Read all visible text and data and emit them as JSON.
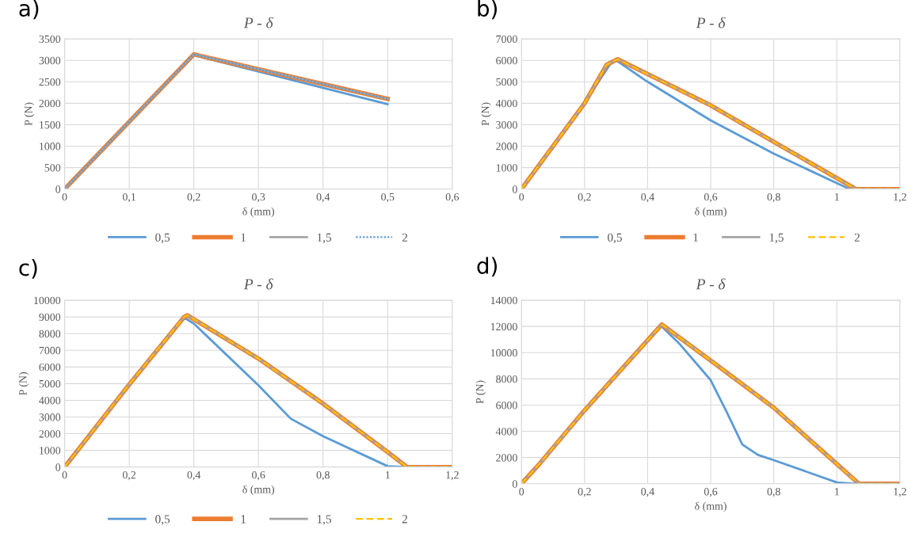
{
  "chart_data": [
    {
      "type": "line",
      "title": "P - δ",
      "xlabel": "δ (mm)",
      "ylabel": "P (N)",
      "annotations": [
        "a)"
      ],
      "grid": true,
      "legend": "bottom",
      "marker": "none",
      "xlim": [
        0,
        0.6
      ],
      "xticks": [
        0,
        {
          "value": 0.1,
          "label": "0,1"
        },
        {
          "value": 0.2,
          "label": "0,2"
        },
        {
          "value": 0.3,
          "label": "0,3"
        },
        {
          "value": 0.4,
          "label": "0,4"
        },
        {
          "value": 0.5,
          "label": "0,5"
        },
        {
          "value": 0.6,
          "label": "0,6"
        }
      ],
      "ylim": [
        0,
        3500
      ],
      "yticks": [
        0,
        500,
        1000,
        1500,
        2000,
        2500,
        3000,
        3500
      ],
      "series": [
        {
          "name": "0,5",
          "color": "#5b9bd5",
          "line_style": "solid",
          "x": [
            0,
            0.2,
            0.5
          ],
          "values": [
            0,
            3120,
            1980
          ]
        },
        {
          "name": "1",
          "color": "#ed7d31",
          "line_style": "solid",
          "x": [
            0,
            0.2,
            0.5
          ],
          "values": [
            0,
            3140,
            2100
          ]
        },
        {
          "name": "1,5",
          "color": "#a5a5a5",
          "line_style": "solid",
          "x": [
            0,
            0.2,
            0.5
          ],
          "values": [
            0,
            3140,
            2100
          ]
        },
        {
          "name": "2",
          "color": "#5b9bd5",
          "line_style": "dotted",
          "x": [
            0,
            0.2,
            0.5
          ],
          "values": [
            0,
            3140,
            2100
          ]
        }
      ]
    },
    {
      "type": "line",
      "title": "P - δ",
      "xlabel": "δ (mm)",
      "ylabel": "P (N)",
      "annotations": [
        "b)"
      ],
      "grid": true,
      "legend": "bottom",
      "marker": "none",
      "xlim": [
        0,
        1.2
      ],
      "xticks": [
        0,
        {
          "value": 0.2,
          "label": "0,2"
        },
        {
          "value": 0.4,
          "label": "0,4"
        },
        {
          "value": 0.6,
          "label": "0,6"
        },
        {
          "value": 0.8,
          "label": "0,8"
        },
        1,
        {
          "value": 1.2,
          "label": "1,2"
        }
      ],
      "ylim": [
        0,
        7000
      ],
      "yticks": [
        0,
        1000,
        2000,
        3000,
        4000,
        5000,
        6000,
        7000
      ],
      "series": [
        {
          "name": "0,5",
          "color": "#5b9bd5",
          "line_style": "solid",
          "x": [
            0.2,
            0.28,
            0.3,
            0.4,
            0.6,
            0.8,
            1.04,
            1.2
          ],
          "values": [
            4000,
            5800,
            6000,
            5000,
            3200,
            1650,
            0,
            0
          ]
        },
        {
          "name": "1",
          "color": "#ed7d31",
          "line_style": "solid",
          "x": [
            0,
            0.2,
            0.27,
            0.305,
            0.6,
            0.8,
            1.06,
            1.2
          ],
          "values": [
            0,
            4000,
            5800,
            6050,
            3900,
            2200,
            0,
            0
          ]
        },
        {
          "name": "1,5",
          "color": "#a5a5a5",
          "line_style": "solid",
          "x": [
            0,
            0.2,
            0.27,
            0.305,
            0.6,
            0.8,
            1.06,
            1.2
          ],
          "values": [
            0,
            4000,
            5800,
            6050,
            3900,
            2200,
            0,
            0
          ]
        },
        {
          "name": "2",
          "color": "#ffc000",
          "line_style": "dashed",
          "x": [
            0,
            0.2,
            0.27,
            0.305,
            0.6,
            0.8,
            1.06,
            1.2
          ],
          "values": [
            0,
            4000,
            5800,
            6050,
            3900,
            2200,
            0,
            0
          ]
        }
      ]
    },
    {
      "type": "line",
      "title": "P - δ",
      "xlabel": "δ (mm)",
      "ylabel": "P (N)",
      "annotations": [
        "c)"
      ],
      "grid": true,
      "legend": "bottom",
      "marker": "none",
      "xlim": [
        0,
        1.2
      ],
      "xticks": [
        0,
        {
          "value": 0.2,
          "label": "0,2"
        },
        {
          "value": 0.4,
          "label": "0,4"
        },
        {
          "value": 0.6,
          "label": "0,6"
        },
        {
          "value": 0.8,
          "label": "0,8"
        },
        1,
        {
          "value": 1.2,
          "label": "1,2"
        }
      ],
      "ylim": [
        0,
        10000
      ],
      "yticks": [
        0,
        1000,
        2000,
        3000,
        4000,
        5000,
        6000,
        7000,
        8000,
        9000,
        10000
      ],
      "series": [
        {
          "name": "0,5",
          "color": "#5b9bd5",
          "line_style": "solid",
          "x": [
            0,
            0.2,
            0.36,
            0.375,
            0.4,
            0.6,
            0.7,
            0.8,
            1.0,
            1.06,
            1.2
          ],
          "values": [
            0,
            4950,
            8800,
            8900,
            8600,
            4900,
            2900,
            1850,
            50,
            0,
            0
          ]
        },
        {
          "name": "1",
          "color": "#ed7d31",
          "line_style": "solid",
          "x": [
            0,
            0.2,
            0.37,
            0.38,
            0.6,
            0.8,
            1.0,
            1.06,
            1.2
          ],
          "values": [
            0,
            4950,
            9000,
            9100,
            6500,
            3800,
            900,
            0,
            0
          ]
        },
        {
          "name": "1,5",
          "color": "#a5a5a5",
          "line_style": "solid",
          "x": [
            0,
            0.2,
            0.37,
            0.38,
            0.6,
            0.8,
            1.0,
            1.06,
            1.2
          ],
          "values": [
            0,
            4950,
            9000,
            9100,
            6500,
            3800,
            900,
            0,
            0
          ]
        },
        {
          "name": "2",
          "color": "#ffc000",
          "line_style": "dashed",
          "x": [
            0,
            0.2,
            0.37,
            0.38,
            0.6,
            0.8,
            1.0,
            1.06,
            1.2
          ],
          "values": [
            0,
            4950,
            9000,
            9100,
            6500,
            3800,
            900,
            0,
            0
          ]
        }
      ]
    },
    {
      "type": "line",
      "title": "P - δ",
      "xlabel": "δ (mm)",
      "ylabel": "P (N)",
      "annotations": [
        "d)"
      ],
      "grid": true,
      "marker": "none",
      "xlim": [
        0,
        1.2
      ],
      "xticks": [
        0,
        {
          "value": 0.2,
          "label": "0,2"
        },
        {
          "value": 0.4,
          "label": "0,4"
        },
        {
          "value": 0.6,
          "label": "0,6"
        },
        {
          "value": 0.8,
          "label": "0,8"
        },
        1,
        {
          "value": 1.2,
          "label": "1,2"
        }
      ],
      "ylim": [
        0,
        14000
      ],
      "yticks": [
        0,
        2000,
        4000,
        6000,
        8000,
        10000,
        12000,
        14000
      ],
      "series": [
        {
          "color": "#5b9bd5",
          "line_style": "solid",
          "x": [
            0.2,
            0.44,
            0.5,
            0.6,
            0.65,
            0.7,
            0.75,
            0.8,
            1.0,
            1.05,
            1.2
          ],
          "values": [
            5600,
            12100,
            10700,
            7900,
            5500,
            3000,
            2200,
            1800,
            100,
            0,
            0
          ]
        },
        {
          "color": "#ed7d31",
          "line_style": "solid",
          "x": [
            0,
            0.06,
            0.2,
            0.445,
            0.6,
            0.8,
            1.0,
            1.07,
            1.2
          ],
          "values": [
            0,
            1600,
            5600,
            12150,
            9400,
            5800,
            1500,
            0,
            0
          ]
        },
        {
          "color": "#a5a5a5",
          "line_style": "solid",
          "x": [
            0,
            0.06,
            0.2,
            0.445,
            0.6,
            0.8,
            1.0,
            1.07,
            1.2
          ],
          "values": [
            0,
            1600,
            5600,
            12150,
            9400,
            5800,
            1500,
            0,
            0
          ]
        },
        {
          "color": "#ffc000",
          "line_style": "dashed",
          "x": [
            0,
            0.06,
            0.2,
            0.445,
            0.6,
            0.8,
            1.0,
            1.07,
            1.2
          ],
          "values": [
            0,
            1600,
            5600,
            12150,
            9400,
            5800,
            1500,
            0,
            0
          ]
        }
      ]
    }
  ]
}
